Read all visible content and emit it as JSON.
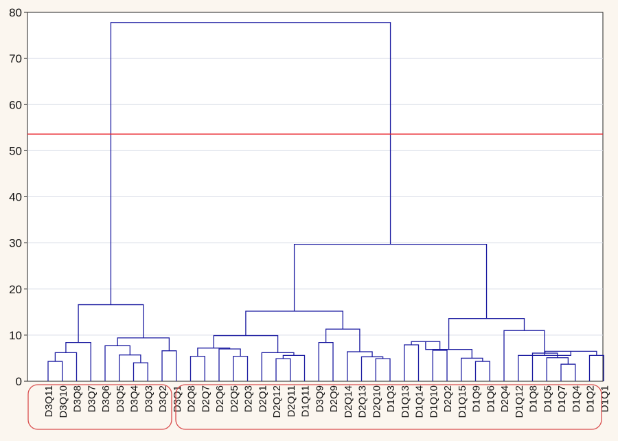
{
  "colors": {
    "background": "#fbf6ef",
    "plot_background": "#ffffff",
    "tree": "#1a1aa0",
    "cut_line": "#e8222a",
    "group_box": "#d94d4d",
    "grid": "#d7dbe6"
  },
  "chart_data": {
    "type": "dendrogram",
    "title": "",
    "xlabel": "",
    "ylabel": "",
    "ylim": [
      0,
      80
    ],
    "yticks": [
      0,
      10,
      20,
      30,
      40,
      50,
      60,
      70,
      80
    ],
    "grid": true,
    "cut_line": 53.6,
    "leaves": [
      "D3Q11",
      "D3Q10",
      "D3Q8",
      "D3Q7",
      "D3Q6",
      "D3Q5",
      "D3Q4",
      "D3Q3",
      "D3Q2",
      "D3Q1",
      "D2Q8",
      "D2Q7",
      "D2Q6",
      "D2Q5",
      "D2Q3",
      "D2Q1",
      "D2Q12",
      "D2Q11",
      "D1Q11",
      "D3Q9",
      "D2Q9",
      "D2Q14",
      "D2Q13",
      "D2Q10",
      "D1Q3",
      "D1Q13",
      "D1Q14",
      "D1Q10",
      "D2Q2",
      "D1Q15",
      "D1Q9",
      "D1Q6",
      "D2Q4",
      "D1Q12",
      "D1Q8",
      "D1Q5",
      "D1Q7",
      "D1Q4",
      "D1Q2",
      "D1Q1"
    ],
    "merges": [
      {
        "id": "A",
        "l": "L0",
        "r": "L1",
        "h": 4.3
      },
      {
        "id": "B",
        "l": "A",
        "r": "L2",
        "h": 6.2
      },
      {
        "id": "C",
        "l": "B",
        "r": "L3",
        "h": 8.4
      },
      {
        "id": "D",
        "l": "L6",
        "r": "L7",
        "h": 4.0
      },
      {
        "id": "E",
        "l": "L5",
        "r": "D",
        "h": 5.7
      },
      {
        "id": "F",
        "l": "L4",
        "r": "E",
        "h": 7.7
      },
      {
        "id": "G",
        "l": "L8",
        "r": "L9",
        "h": 6.6
      },
      {
        "id": "H",
        "l": "F",
        "r": "G",
        "h": 9.4
      },
      {
        "id": "I",
        "l": "C",
        "r": "H",
        "h": 16.6
      },
      {
        "id": "J",
        "l": "L10",
        "r": "L11",
        "h": 5.4
      },
      {
        "id": "K",
        "l": "L13",
        "r": "L14",
        "h": 5.4
      },
      {
        "id": "L",
        "l": "L12",
        "r": "K",
        "h": 7.0
      },
      {
        "id": "M",
        "l": "J",
        "r": "L",
        "h": 7.2
      },
      {
        "id": "N",
        "l": "L16",
        "r": "L17",
        "h": 4.9
      },
      {
        "id": "O",
        "l": "N",
        "r": "L18",
        "h": 5.6
      },
      {
        "id": "P",
        "l": "L15",
        "r": "O",
        "h": 6.2
      },
      {
        "id": "Q",
        "l": "M",
        "r": "P",
        "h": 9.9
      },
      {
        "id": "R",
        "l": "L19",
        "r": "L20",
        "h": 8.4
      },
      {
        "id": "S",
        "l": "L23",
        "r": "L24",
        "h": 4.9
      },
      {
        "id": "T",
        "l": "L22",
        "r": "S",
        "h": 5.3
      },
      {
        "id": "U",
        "l": "L21",
        "r": "T",
        "h": 6.4
      },
      {
        "id": "V",
        "l": "R",
        "r": "U",
        "h": 11.3
      },
      {
        "id": "W",
        "l": "Q",
        "r": "V",
        "h": 15.2
      },
      {
        "id": "X",
        "l": "L25",
        "r": "L26",
        "h": 7.9
      },
      {
        "id": "Y",
        "l": "L27",
        "r": "L28",
        "h": 6.7
      },
      {
        "id": "Z",
        "l": "X",
        "r": "Y",
        "h": 8.6
      },
      {
        "id": "AA",
        "l": "L30",
        "r": "L31",
        "h": 4.3
      },
      {
        "id": "AB",
        "l": "L29",
        "r": "AA",
        "h": 5.0
      },
      {
        "id": "AC",
        "l": "Z",
        "r": "AB",
        "h": 6.9
      },
      {
        "id": "AD",
        "l": "L36",
        "r": "L37",
        "h": 3.7
      },
      {
        "id": "AE",
        "l": "L35",
        "r": "AD",
        "h": 5.1
      },
      {
        "id": "AF",
        "l": "L34",
        "r": "AE",
        "h": 6.1
      },
      {
        "id": "AG",
        "l": "L38",
        "r": "L39",
        "h": 5.6
      },
      {
        "id": "AH",
        "l": "AF",
        "r": "AG",
        "h": 6.5
      },
      {
        "id": "AI",
        "l": "L33",
        "r": "AH",
        "h": 5.6
      },
      {
        "id": "AJ",
        "l": "L32",
        "r": "AI",
        "h": 11.0
      },
      {
        "id": "AK",
        "l": "AC",
        "r": "AJ",
        "h": 13.6
      },
      {
        "id": "AL",
        "l": "W",
        "r": "AK",
        "h": 29.7
      },
      {
        "id": "AM",
        "l": "I",
        "r": "AL",
        "h": 77.8
      }
    ]
  }
}
